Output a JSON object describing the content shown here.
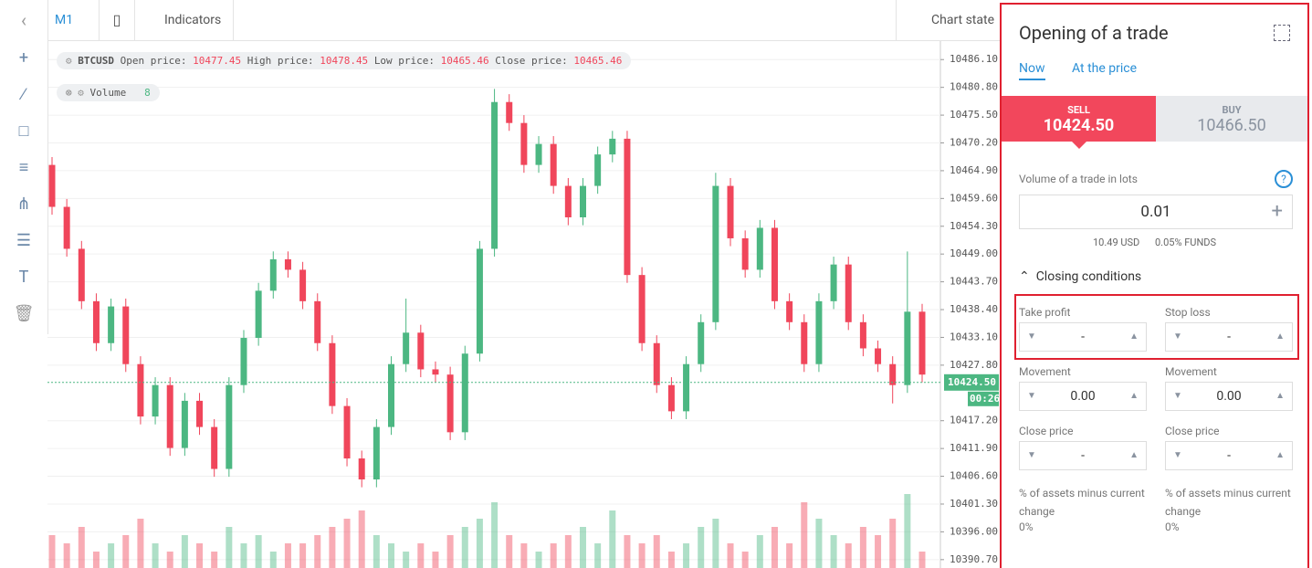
{
  "toolbar": {
    "timeframe": "M1",
    "indicators": "Indicators",
    "chart_state": "Chart state"
  },
  "chart_legend": {
    "symbol": "BTCUSD",
    "open_label": "Open price:",
    "open": "10477.45",
    "high_label": "High price:",
    "high": "10478.45",
    "low_label": "Low price:",
    "low": "10465.46",
    "close_label": "Close price:",
    "close": "10465.46",
    "volume_label": "Volume",
    "volume": "8"
  },
  "chart_data": {
    "type": "candlestick",
    "open": [
      10466,
      10458,
      10450,
      10440,
      10432,
      10439,
      10428,
      10418,
      10424,
      10412,
      10421,
      10416,
      10408,
      10424,
      10433,
      10442,
      10448,
      10446,
      10440,
      10432,
      10420,
      10410,
      10406,
      10416,
      10428,
      10434,
      10427,
      10426,
      10415,
      10430,
      10450,
      10478,
      10474,
      10466,
      10470,
      10462,
      10456,
      10462,
      10468,
      10471,
      10445,
      10432,
      10424,
      10419,
      10428,
      10436,
      10462,
      10452,
      10446,
      10454,
      10440,
      10436,
      10428,
      10440,
      10447,
      10436,
      10431,
      10428,
      10424,
      10438
    ],
    "high": [
      10467.5,
      10459.5,
      10451.5,
      10441.5,
      10440.5,
      10440.5,
      10429.5,
      10425.5,
      10425.5,
      10422.5,
      10422.5,
      10417.5,
      10425.5,
      10434.5,
      10443.5,
      10449.5,
      10449.5,
      10447.5,
      10441.5,
      10433.5,
      10421.5,
      10411.5,
      10417.5,
      10429.5,
      10440.5,
      10435.5,
      10428.5,
      10427.5,
      10431.5,
      10451.5,
      10480.5,
      10479.5,
      10475.5,
      10471.5,
      10471.5,
      10463.5,
      10463.5,
      10469.5,
      10472.5,
      10472.5,
      10446.5,
      10433.5,
      10425.5,
      10429.5,
      10437.5,
      10464.5,
      10463.5,
      10453.5,
      10455.5,
      10455.5,
      10441.5,
      10437.5,
      10441.5,
      10448.5,
      10448.5,
      10437.5,
      10432.5,
      10429.5,
      10449.5,
      10439.5
    ],
    "low": [
      10456.5,
      10448.5,
      10438.5,
      10430.5,
      10430.5,
      10426.5,
      10416.5,
      10416.5,
      10410.5,
      10410.5,
      10414.5,
      10406.5,
      10406.5,
      10422.5,
      10431.5,
      10440.5,
      10444.5,
      10438.5,
      10430.5,
      10418.5,
      10408.5,
      10404.5,
      10404.5,
      10414.5,
      10426.5,
      10425.5,
      10424.5,
      10413.5,
      10413.5,
      10428.5,
      10448.5,
      10472.5,
      10464.5,
      10464.5,
      10460.5,
      10454.5,
      10454.5,
      10460.5,
      10466.5,
      10443.5,
      10430.5,
      10422.5,
      10417.5,
      10417.5,
      10426.5,
      10434.5,
      10450.5,
      10444.5,
      10444.5,
      10438.5,
      10434.5,
      10426.5,
      10426.5,
      10438.5,
      10434.5,
      10429.5,
      10426.5,
      10420.5,
      10422.5,
      10424.5
    ],
    "close": [
      10458,
      10450,
      10440,
      10432,
      10439,
      10428,
      10418,
      10424,
      10412,
      10421,
      10416,
      10408,
      10424,
      10433,
      10442,
      10448,
      10446,
      10440,
      10432,
      10420,
      10410,
      10406,
      10416,
      10428,
      10434,
      10427,
      10426,
      10415,
      10430,
      10450,
      10478,
      10474,
      10466,
      10470,
      10462,
      10456,
      10462,
      10468,
      10471,
      10445,
      10432,
      10424,
      10419,
      10428,
      10436,
      10462,
      10452,
      10446,
      10454,
      10440,
      10436,
      10428,
      10440,
      10447,
      10436,
      10431,
      10428,
      10424,
      10438,
      10426
    ],
    "volume": [
      4,
      3,
      5,
      2,
      3,
      4,
      6,
      3,
      2,
      4,
      3,
      2,
      5,
      3,
      4,
      2,
      3,
      3,
      4,
      5,
      6,
      7,
      4,
      3,
      2,
      3,
      2,
      4,
      5,
      6,
      8,
      4,
      3,
      2,
      3,
      4,
      5,
      3,
      7,
      4,
      3,
      4,
      2,
      3,
      5,
      6,
      3,
      2,
      4,
      5,
      3,
      8,
      6,
      4,
      3,
      5,
      4,
      6,
      9,
      2
    ],
    "ylim": [
      10389.1,
      10489.8
    ],
    "yticks": [
      {
        "value": 10486.1,
        "label": "10486.10"
      },
      {
        "value": 10480.8,
        "label": "10480.80"
      },
      {
        "value": 10475.5,
        "label": "10475.50"
      },
      {
        "value": 10470.2,
        "label": "10470.20"
      },
      {
        "value": 10464.9,
        "label": "10464.90"
      },
      {
        "value": 10459.6,
        "label": "10459.60"
      },
      {
        "value": 10454.3,
        "label": "10454.30"
      },
      {
        "value": 10449,
        "label": "10449.00"
      },
      {
        "value": 10443.7,
        "label": "10443.70"
      },
      {
        "value": 10438.4,
        "label": "10438.40"
      },
      {
        "value": 10433.1,
        "label": "10433.10"
      },
      {
        "value": 10427.8,
        "label": "10427.80"
      },
      {
        "value": 10417.2,
        "label": "10417.20"
      },
      {
        "value": 10411.9,
        "label": "10411.90"
      },
      {
        "value": 10406.6,
        "label": "10406.60"
      },
      {
        "value": 10401.3,
        "label": "10401.30"
      },
      {
        "value": 10396,
        "label": "10396.00"
      },
      {
        "value": 10390.7,
        "label": "10390.70"
      }
    ],
    "current_price": {
      "value": 10424.5,
      "label": "10424.50"
    },
    "countdown": "00:26",
    "up_color": "#4cb782",
    "down_color": "#f0465b",
    "grid": true
  },
  "panel": {
    "title": "Opening of a trade",
    "tabs": [
      "Now",
      "At the price"
    ],
    "sell": {
      "label": "SELL",
      "price": "10424.50"
    },
    "buy": {
      "label": "BUY",
      "price": "10466.50"
    },
    "volume_label": "Volume of a trade in lots",
    "help": "?",
    "lots": "0.01",
    "usd": "10.49 USD",
    "funds": "0.05% FUNDS",
    "closing": "Closing conditions",
    "left": {
      "take": "Take profit",
      "take_val": "-",
      "movement": "Movement",
      "movement_val": "0.00",
      "close": "Close price",
      "close_val": "-",
      "pct": "% of assets minus current change",
      "pct_val": "0%"
    },
    "right": {
      "take": "Stop loss",
      "take_val": "-",
      "movement": "Movement",
      "movement_val": "0.00",
      "close": "Close price",
      "close_val": "-",
      "pct": "% of assets minus current change",
      "pct_val": "0%"
    }
  }
}
